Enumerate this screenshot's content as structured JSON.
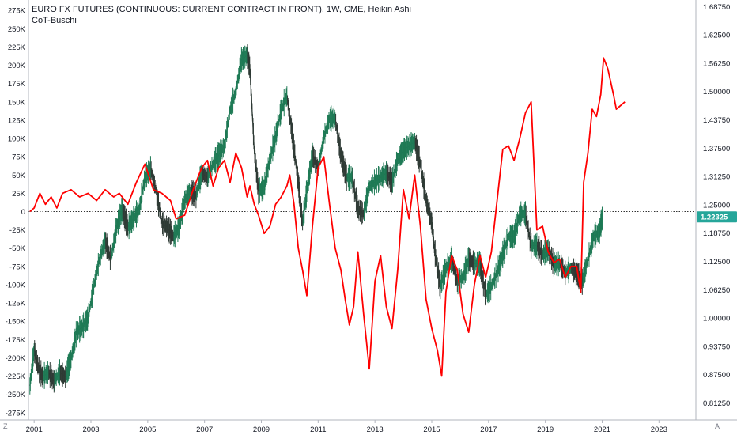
{
  "header": {
    "title": "EURO FX FUTURES (CONTINUOUS: CURRENT CONTRACT IN FRONT), 1W, CME, Heikin Ashi",
    "subtitle": "CoT-Buschi"
  },
  "footer": {
    "left_button": "Z",
    "right_button": "A"
  },
  "price_badge": {
    "value": "1.22325",
    "color": "#26a69a"
  },
  "colors": {
    "cot_line": "#ff0000",
    "candles": "#2e3a35",
    "candles_up": "#1e7a55",
    "zero_line": "#333333"
  },
  "chart_data": {
    "type": "line",
    "title": "EURO FX FUTURES (CONTINUOUS: CURRENT CONTRACT IN FRONT), 1W, CME, Heikin Ashi",
    "x_ticks": [
      "2001",
      "2003",
      "2005",
      "2007",
      "2009",
      "2011",
      "2013",
      "2015",
      "2017",
      "2019",
      "2021",
      "2023"
    ],
    "left_axis": {
      "ticks": [
        "275K",
        "250K",
        "225K",
        "200K",
        "175K",
        "150K",
        "125K",
        "100K",
        "75K",
        "50K",
        "25K",
        "0",
        "-25K",
        "-50K",
        "-75K",
        "-100K",
        "-125K",
        "-150K",
        "-175K",
        "-200K",
        "-225K",
        "-250K",
        "-275K"
      ],
      "range": [
        -285000,
        285000
      ]
    },
    "right_axis": {
      "ticks": [
        "1.68750",
        "1.62500",
        "1.56250",
        "1.50000",
        "1.43750",
        "1.37500",
        "1.31250",
        "1.25000",
        "1.18750",
        "1.12500",
        "1.06250",
        "1.00000",
        "0.93750",
        "0.87500",
        "0.81250"
      ],
      "range": [
        0.775,
        1.695
      ],
      "last_price": 1.22325
    },
    "xlim": [
      2000.8,
      2024.3
    ],
    "grid": false,
    "series": [
      {
        "axis": "left",
        "style": "line",
        "color": "#ff0000",
        "x": [
          2000.85,
          2001.0,
          2001.2,
          2001.4,
          2001.6,
          2001.8,
          2002.0,
          2002.3,
          2002.6,
          2002.9,
          2003.2,
          2003.5,
          2003.8,
          2004.0,
          2004.3,
          2004.6,
          2004.9,
          2005.2,
          2005.5,
          2005.8,
          2006.0,
          2006.3,
          2006.6,
          2006.9,
          2007.1,
          2007.3,
          2007.5,
          2007.7,
          2007.9,
          2008.1,
          2008.3,
          2008.5,
          2008.6,
          2008.75,
          2008.9,
          2009.1,
          2009.3,
          2009.5,
          2009.7,
          2009.9,
          2010.0,
          2010.15,
          2010.3,
          2010.45,
          2010.6,
          2010.8,
          2011.0,
          2011.2,
          2011.4,
          2011.6,
          2011.8,
          2011.95,
          2012.1,
          2012.25,
          2012.4,
          2012.6,
          2012.8,
          2013.0,
          2013.2,
          2013.4,
          2013.6,
          2013.8,
          2014.0,
          2014.2,
          2014.4,
          2014.6,
          2014.8,
          2015.0,
          2015.2,
          2015.35,
          2015.5,
          2015.7,
          2015.9,
          2016.1,
          2016.3,
          2016.5,
          2016.7,
          2016.9,
          2017.1,
          2017.3,
          2017.5,
          2017.7,
          2017.9,
          2018.1,
          2018.3,
          2018.5,
          2018.7,
          2018.9,
          2019.1,
          2019.3,
          2019.5,
          2019.7,
          2019.9,
          2020.1,
          2020.25,
          2020.35,
          2020.5,
          2020.65,
          2020.8,
          2020.95,
          2021.05,
          2021.2,
          2021.4,
          2021.5,
          2021.65,
          2021.8
        ],
        "values": [
          0,
          5000,
          25000,
          10000,
          20000,
          5000,
          25000,
          30000,
          20000,
          25000,
          15000,
          30000,
          20000,
          25000,
          10000,
          40000,
          65000,
          30000,
          25000,
          15000,
          -10000,
          -5000,
          30000,
          60000,
          70000,
          35000,
          60000,
          70000,
          40000,
          80000,
          60000,
          20000,
          35000,
          10000,
          -5000,
          -30000,
          -20000,
          10000,
          20000,
          35000,
          50000,
          10000,
          -50000,
          -80000,
          -115000,
          -20000,
          60000,
          75000,
          10000,
          -50000,
          -80000,
          -120000,
          -155000,
          -130000,
          -55000,
          -140000,
          -215000,
          -95000,
          -60000,
          -130000,
          -160000,
          -80000,
          30000,
          -10000,
          50000,
          -20000,
          -120000,
          -160000,
          -190000,
          -225000,
          -110000,
          -60000,
          -80000,
          -140000,
          -165000,
          -100000,
          -60000,
          -90000,
          -55000,
          15000,
          85000,
          90000,
          70000,
          100000,
          135000,
          150000,
          -25000,
          -20000,
          -55000,
          -70000,
          -65000,
          -90000,
          -75000,
          -75000,
          -110000,
          40000,
          80000,
          140000,
          130000,
          160000,
          210000,
          195000,
          160000,
          140000,
          145000,
          150000
        ]
      },
      {
        "axis": "right",
        "style": "candles",
        "color": "#2e3a35",
        "x": [
          2000.85,
          2001.0,
          2001.15,
          2001.3,
          2001.5,
          2001.7,
          2001.9,
          2002.1,
          2002.3,
          2002.5,
          2002.7,
          2002.9,
          2003.1,
          2003.3,
          2003.5,
          2003.7,
          2003.9,
          2004.1,
          2004.3,
          2004.5,
          2004.7,
          2004.9,
          2005.1,
          2005.3,
          2005.5,
          2005.7,
          2005.9,
          2006.1,
          2006.3,
          2006.5,
          2006.7,
          2006.9,
          2007.1,
          2007.3,
          2007.5,
          2007.7,
          2007.9,
          2008.1,
          2008.3,
          2008.5,
          2008.6,
          2008.75,
          2008.9,
          2009.1,
          2009.3,
          2009.5,
          2009.7,
          2009.9,
          2010.1,
          2010.3,
          2010.45,
          2010.6,
          2010.8,
          2011.0,
          2011.2,
          2011.4,
          2011.6,
          2011.8,
          2012.0,
          2012.2,
          2012.4,
          2012.6,
          2012.8,
          2013.0,
          2013.2,
          2013.4,
          2013.6,
          2013.8,
          2014.0,
          2014.2,
          2014.4,
          2014.6,
          2014.8,
          2015.0,
          2015.1,
          2015.3,
          2015.5,
          2015.7,
          2015.9,
          2016.1,
          2016.3,
          2016.5,
          2016.7,
          2016.9,
          2017.1,
          2017.3,
          2017.5,
          2017.7,
          2017.9,
          2018.1,
          2018.3,
          2018.5,
          2018.7,
          2018.9,
          2019.1,
          2019.3,
          2019.5,
          2019.7,
          2019.9,
          2020.1,
          2020.3,
          2020.5,
          2020.7,
          2020.9,
          2021.0
        ],
        "values": [
          0.85,
          0.93,
          0.89,
          0.87,
          0.88,
          0.86,
          0.88,
          0.87,
          0.91,
          0.97,
          0.98,
          1.0,
          1.07,
          1.13,
          1.17,
          1.13,
          1.2,
          1.24,
          1.2,
          1.22,
          1.24,
          1.31,
          1.33,
          1.28,
          1.21,
          1.2,
          1.18,
          1.2,
          1.26,
          1.28,
          1.27,
          1.32,
          1.31,
          1.34,
          1.36,
          1.38,
          1.46,
          1.5,
          1.57,
          1.58,
          1.55,
          1.37,
          1.28,
          1.29,
          1.35,
          1.4,
          1.46,
          1.49,
          1.4,
          1.3,
          1.21,
          1.28,
          1.36,
          1.33,
          1.4,
          1.44,
          1.44,
          1.36,
          1.31,
          1.31,
          1.24,
          1.23,
          1.29,
          1.3,
          1.31,
          1.32,
          1.3,
          1.35,
          1.37,
          1.38,
          1.39,
          1.34,
          1.26,
          1.21,
          1.15,
          1.07,
          1.11,
          1.13,
          1.08,
          1.09,
          1.13,
          1.12,
          1.12,
          1.05,
          1.07,
          1.1,
          1.14,
          1.18,
          1.18,
          1.23,
          1.23,
          1.16,
          1.16,
          1.14,
          1.15,
          1.12,
          1.12,
          1.1,
          1.11,
          1.1,
          1.08,
          1.13,
          1.18,
          1.19,
          1.22
        ]
      }
    ]
  }
}
